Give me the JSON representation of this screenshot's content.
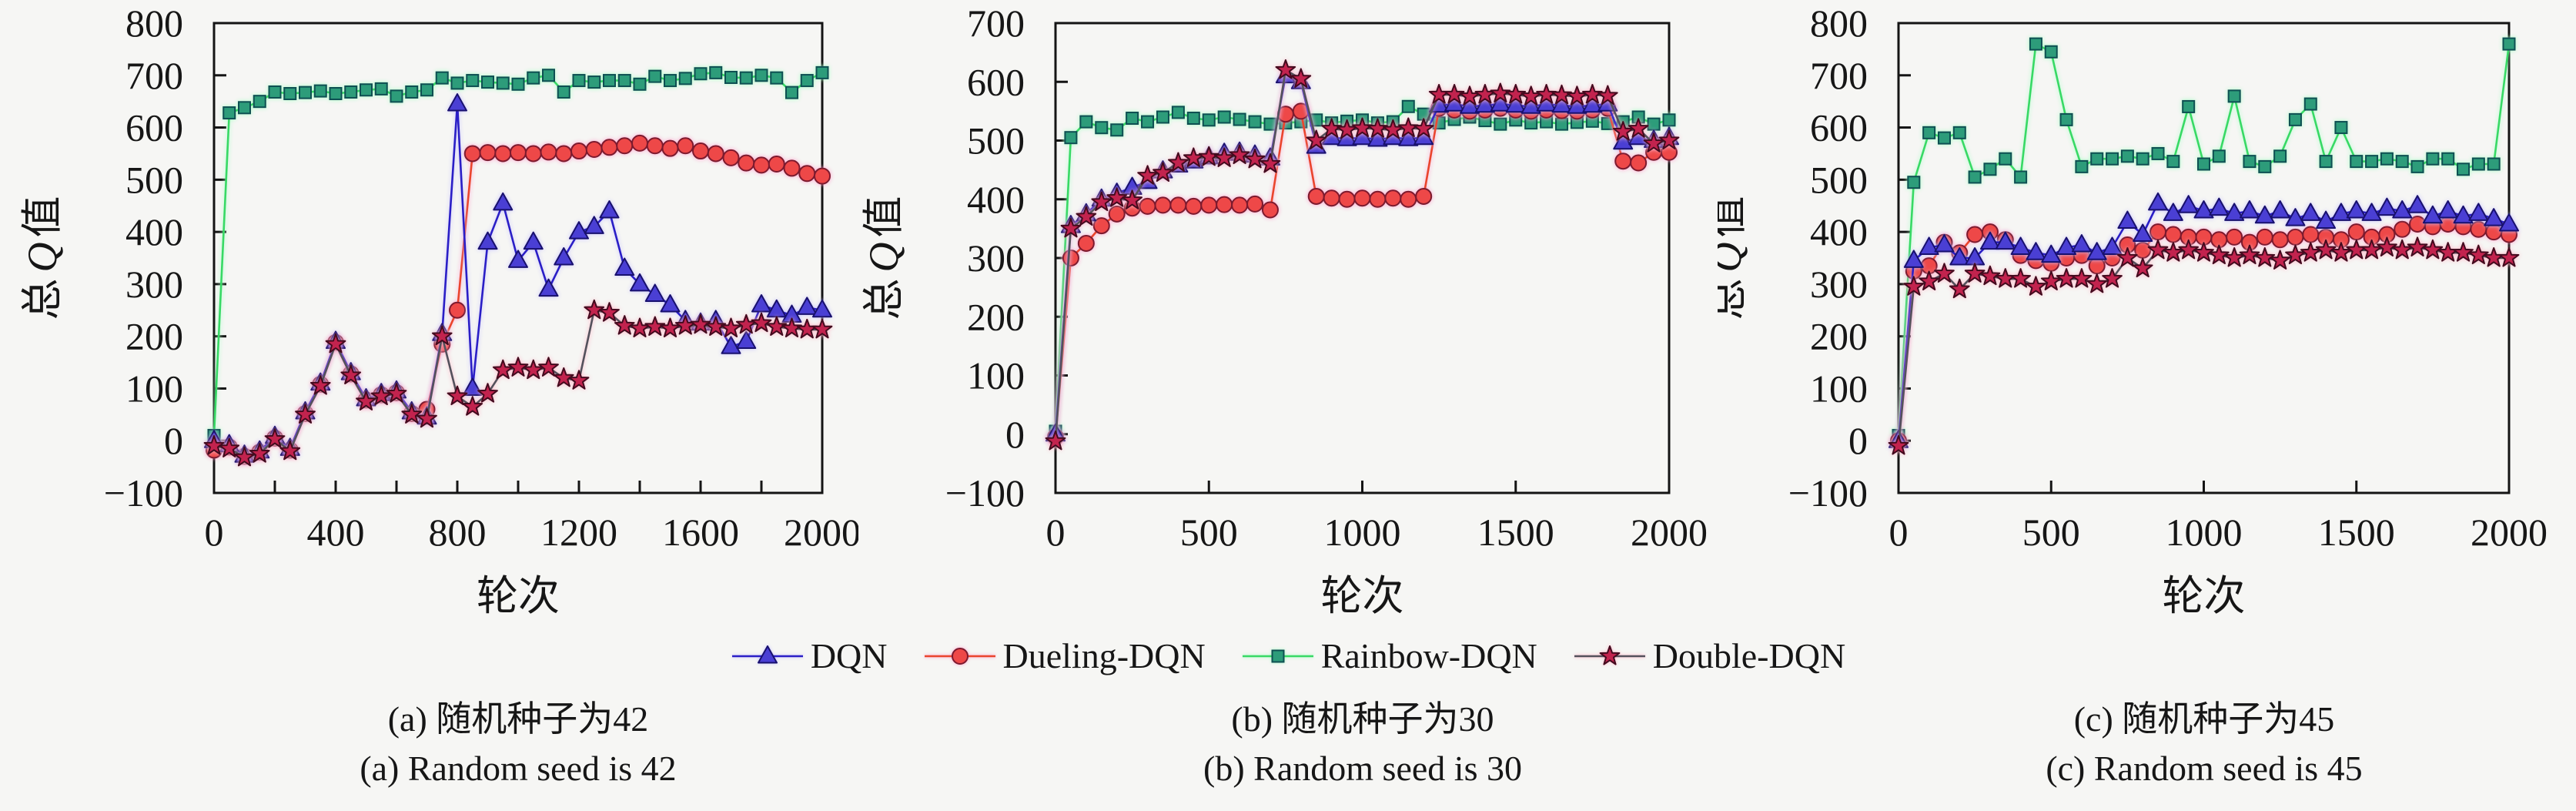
{
  "page": {
    "background": "#f6f6f4"
  },
  "legend": {
    "items": [
      {
        "label": "DQN",
        "marker": "triangle",
        "line_color": "#2a1ec6",
        "marker_fill": "#4a3fd4",
        "marker_edge": "#18106e",
        "glow": "#c6c2ff"
      },
      {
        "label": "Dueling-DQN",
        "marker": "circle",
        "line_color": "#ea452d",
        "marker_fill": "#ee4848",
        "marker_edge": "#7c1a2e",
        "glow": "#ffa0cc"
      },
      {
        "label": "Rainbow-DQN",
        "marker": "square",
        "line_color": "#38d965",
        "marker_fill": "#2d9c7a",
        "marker_edge": "#0e4f52",
        "glow": "#a8ffc6"
      },
      {
        "label": "Double-DQN",
        "marker": "star",
        "line_color": "#54515c",
        "marker_fill": "#c2234e",
        "marker_edge": "#430a1e",
        "glow": "#ffb2c4"
      }
    ]
  },
  "axes": {
    "ylabel_pre": "总",
    "ylabel_italic": "Q",
    "ylabel_post": "值",
    "xlabel": "轮次"
  },
  "chart_data": [
    {
      "type": "line",
      "panel": "(a)",
      "caption_cn": "(a) 随机种子为42",
      "caption_en": "(a) Random seed is 42",
      "xlabel": "轮次",
      "ylabel": "总Q值",
      "xlim": [
        0,
        2000
      ],
      "ylim": [
        -100,
        800
      ],
      "x_ticks": [
        0,
        400,
        800,
        1200,
        1600,
        2000
      ],
      "x_minor_ticks": [
        200,
        600,
        1000,
        1400,
        1800
      ],
      "y_ticks": [
        -100,
        0,
        100,
        200,
        300,
        400,
        500,
        600,
        700,
        800
      ],
      "grid": false,
      "x": [
        0,
        50,
        100,
        150,
        200,
        250,
        300,
        350,
        400,
        450,
        500,
        550,
        600,
        650,
        700,
        750,
        800,
        850,
        900,
        950,
        1000,
        1050,
        1100,
        1150,
        1200,
        1250,
        1300,
        1350,
        1400,
        1450,
        1500,
        1550,
        1600,
        1650,
        1700,
        1750,
        1800,
        1850,
        1900,
        1950,
        2000
      ],
      "series": [
        {
          "name": "DQN",
          "values": [
            0,
            -8,
            -28,
            -20,
            8,
            -15,
            55,
            110,
            190,
            130,
            80,
            90,
            95,
            55,
            45,
            205,
            645,
            100,
            380,
            455,
            345,
            380,
            290,
            350,
            400,
            410,
            440,
            330,
            300,
            280,
            260,
            230,
            225,
            230,
            180,
            190,
            260,
            250,
            240,
            255,
            250
          ]
        },
        {
          "name": "Dueling-DQN",
          "values": [
            -18,
            -12,
            -30,
            -22,
            5,
            -18,
            52,
            108,
            188,
            128,
            78,
            88,
            92,
            52,
            60,
            185,
            250,
            550,
            552,
            550,
            552,
            550,
            553,
            550,
            555,
            558,
            562,
            565,
            570,
            565,
            560,
            565,
            555,
            550,
            542,
            532,
            528,
            530,
            522,
            512,
            507
          ]
        },
        {
          "name": "Rainbow-DQN",
          "values": [
            10,
            628,
            638,
            650,
            668,
            665,
            667,
            670,
            665,
            668,
            672,
            674,
            660,
            668,
            672,
            695,
            685,
            690,
            687,
            685,
            683,
            695,
            700,
            668,
            690,
            687,
            690,
            690,
            683,
            698,
            690,
            694,
            703,
            705,
            696,
            695,
            700,
            695,
            667,
            690,
            705
          ]
        },
        {
          "name": "Double-DQN",
          "values": [
            -10,
            -15,
            -32,
            -25,
            3,
            -20,
            50,
            105,
            185,
            125,
            75,
            85,
            90,
            50,
            42,
            200,
            85,
            65,
            90,
            135,
            140,
            135,
            140,
            120,
            115,
            250,
            245,
            220,
            215,
            218,
            215,
            220,
            222,
            218,
            215,
            222,
            225,
            218,
            215,
            213,
            213
          ]
        }
      ]
    },
    {
      "type": "line",
      "panel": "(b)",
      "caption_cn": "(b) 随机种子为30",
      "caption_en": "(b) Random seed is 30",
      "xlabel": "轮次",
      "ylabel": "总Q值",
      "xlim": [
        0,
        2000
      ],
      "ylim": [
        -100,
        700
      ],
      "x_ticks": [
        0,
        500,
        1000,
        1500,
        2000
      ],
      "x_minor_ticks": [],
      "y_ticks": [
        -100,
        0,
        100,
        200,
        300,
        400,
        500,
        600,
        700
      ],
      "grid": false,
      "x": [
        0,
        50,
        100,
        150,
        200,
        250,
        300,
        350,
        400,
        450,
        500,
        550,
        600,
        650,
        700,
        750,
        800,
        850,
        900,
        950,
        1000,
        1050,
        1100,
        1150,
        1200,
        1250,
        1300,
        1350,
        1400,
        1450,
        1500,
        1550,
        1600,
        1650,
        1700,
        1750,
        1800,
        1850,
        1900,
        1950,
        2000
      ],
      "series": [
        {
          "name": "DQN",
          "values": [
            0,
            355,
            375,
            400,
            410,
            420,
            430,
            448,
            458,
            465,
            472,
            478,
            480,
            475,
            470,
            610,
            600,
            490,
            505,
            503,
            505,
            502,
            505,
            503,
            505,
            560,
            562,
            558,
            560,
            562,
            560,
            558,
            562,
            560,
            558,
            560,
            562,
            497,
            505,
            500,
            505
          ]
        },
        {
          "name": "Dueling-DQN",
          "values": [
            -5,
            300,
            325,
            355,
            375,
            385,
            388,
            390,
            390,
            388,
            390,
            391,
            390,
            392,
            382,
            545,
            550,
            405,
            402,
            400,
            402,
            400,
            402,
            400,
            405,
            555,
            552,
            550,
            552,
            555,
            552,
            550,
            552,
            551,
            550,
            552,
            555,
            465,
            462,
            480,
            480
          ]
        },
        {
          "name": "Rainbow-DQN",
          "values": [
            5,
            505,
            532,
            522,
            518,
            538,
            532,
            540,
            548,
            538,
            535,
            540,
            536,
            532,
            528,
            530,
            532,
            535,
            530,
            533,
            535,
            530,
            532,
            558,
            545,
            530,
            536,
            540,
            534,
            528,
            535,
            530,
            532,
            528,
            531,
            533,
            529,
            532,
            540,
            528,
            535
          ]
        },
        {
          "name": "Double-DQN",
          "values": [
            -12,
            350,
            370,
            395,
            402,
            398,
            440,
            445,
            462,
            470,
            472,
            470,
            475,
            468,
            460,
            620,
            605,
            500,
            520,
            518,
            521,
            520,
            518,
            521,
            520,
            578,
            578,
            575,
            578,
            580,
            578,
            575,
            578,
            577,
            575,
            578,
            576,
            515,
            520,
            495,
            500
          ]
        }
      ]
    },
    {
      "type": "line",
      "panel": "(c)",
      "caption_cn": "(c) 随机种子为45",
      "caption_en": "(c) Random seed is 45",
      "xlabel": "轮次",
      "ylabel": "总Q值",
      "xlim": [
        0,
        2000
      ],
      "ylim": [
        -100,
        800
      ],
      "x_ticks": [
        0,
        500,
        1000,
        1500,
        2000
      ],
      "x_minor_ticks": [],
      "y_ticks": [
        -100,
        0,
        100,
        200,
        300,
        400,
        500,
        600,
        700,
        800
      ],
      "grid": false,
      "x": [
        0,
        50,
        100,
        150,
        200,
        250,
        300,
        350,
        400,
        450,
        500,
        550,
        600,
        650,
        700,
        750,
        800,
        850,
        900,
        950,
        1000,
        1050,
        1100,
        1150,
        1200,
        1250,
        1300,
        1350,
        1400,
        1450,
        1500,
        1550,
        1600,
        1650,
        1700,
        1750,
        1800,
        1850,
        1900,
        1950,
        2000
      ],
      "series": [
        {
          "name": "DQN",
          "values": [
            0,
            345,
            370,
            375,
            350,
            350,
            380,
            380,
            370,
            360,
            355,
            370,
            375,
            360,
            370,
            420,
            395,
            455,
            435,
            450,
            440,
            445,
            435,
            440,
            430,
            440,
            425,
            435,
            420,
            435,
            440,
            435,
            445,
            440,
            450,
            430,
            440,
            430,
            435,
            425,
            415
          ]
        },
        {
          "name": "Dueling-DQN",
          "values": [
            0,
            325,
            335,
            380,
            360,
            395,
            400,
            385,
            355,
            345,
            340,
            350,
            355,
            335,
            350,
            375,
            365,
            400,
            395,
            390,
            390,
            385,
            390,
            380,
            390,
            385,
            390,
            395,
            390,
            385,
            400,
            390,
            395,
            405,
            415,
            410,
            415,
            410,
            405,
            400,
            395
          ]
        },
        {
          "name": "Rainbow-DQN",
          "values": [
            10,
            495,
            590,
            580,
            590,
            505,
            520,
            540,
            505,
            760,
            745,
            615,
            525,
            540,
            540,
            545,
            540,
            550,
            535,
            640,
            530,
            545,
            660,
            535,
            525,
            545,
            615,
            645,
            535,
            600,
            535,
            535,
            540,
            535,
            525,
            540,
            540,
            520,
            530,
            530,
            760
          ]
        },
        {
          "name": "Double-DQN",
          "values": [
            -10,
            295,
            305,
            320,
            290,
            320,
            315,
            310,
            310,
            295,
            305,
            310,
            310,
            300,
            310,
            350,
            330,
            365,
            360,
            365,
            360,
            355,
            350,
            355,
            350,
            345,
            355,
            360,
            365,
            360,
            365,
            365,
            370,
            365,
            370,
            365,
            360,
            360,
            355,
            350,
            350
          ]
        }
      ]
    }
  ]
}
